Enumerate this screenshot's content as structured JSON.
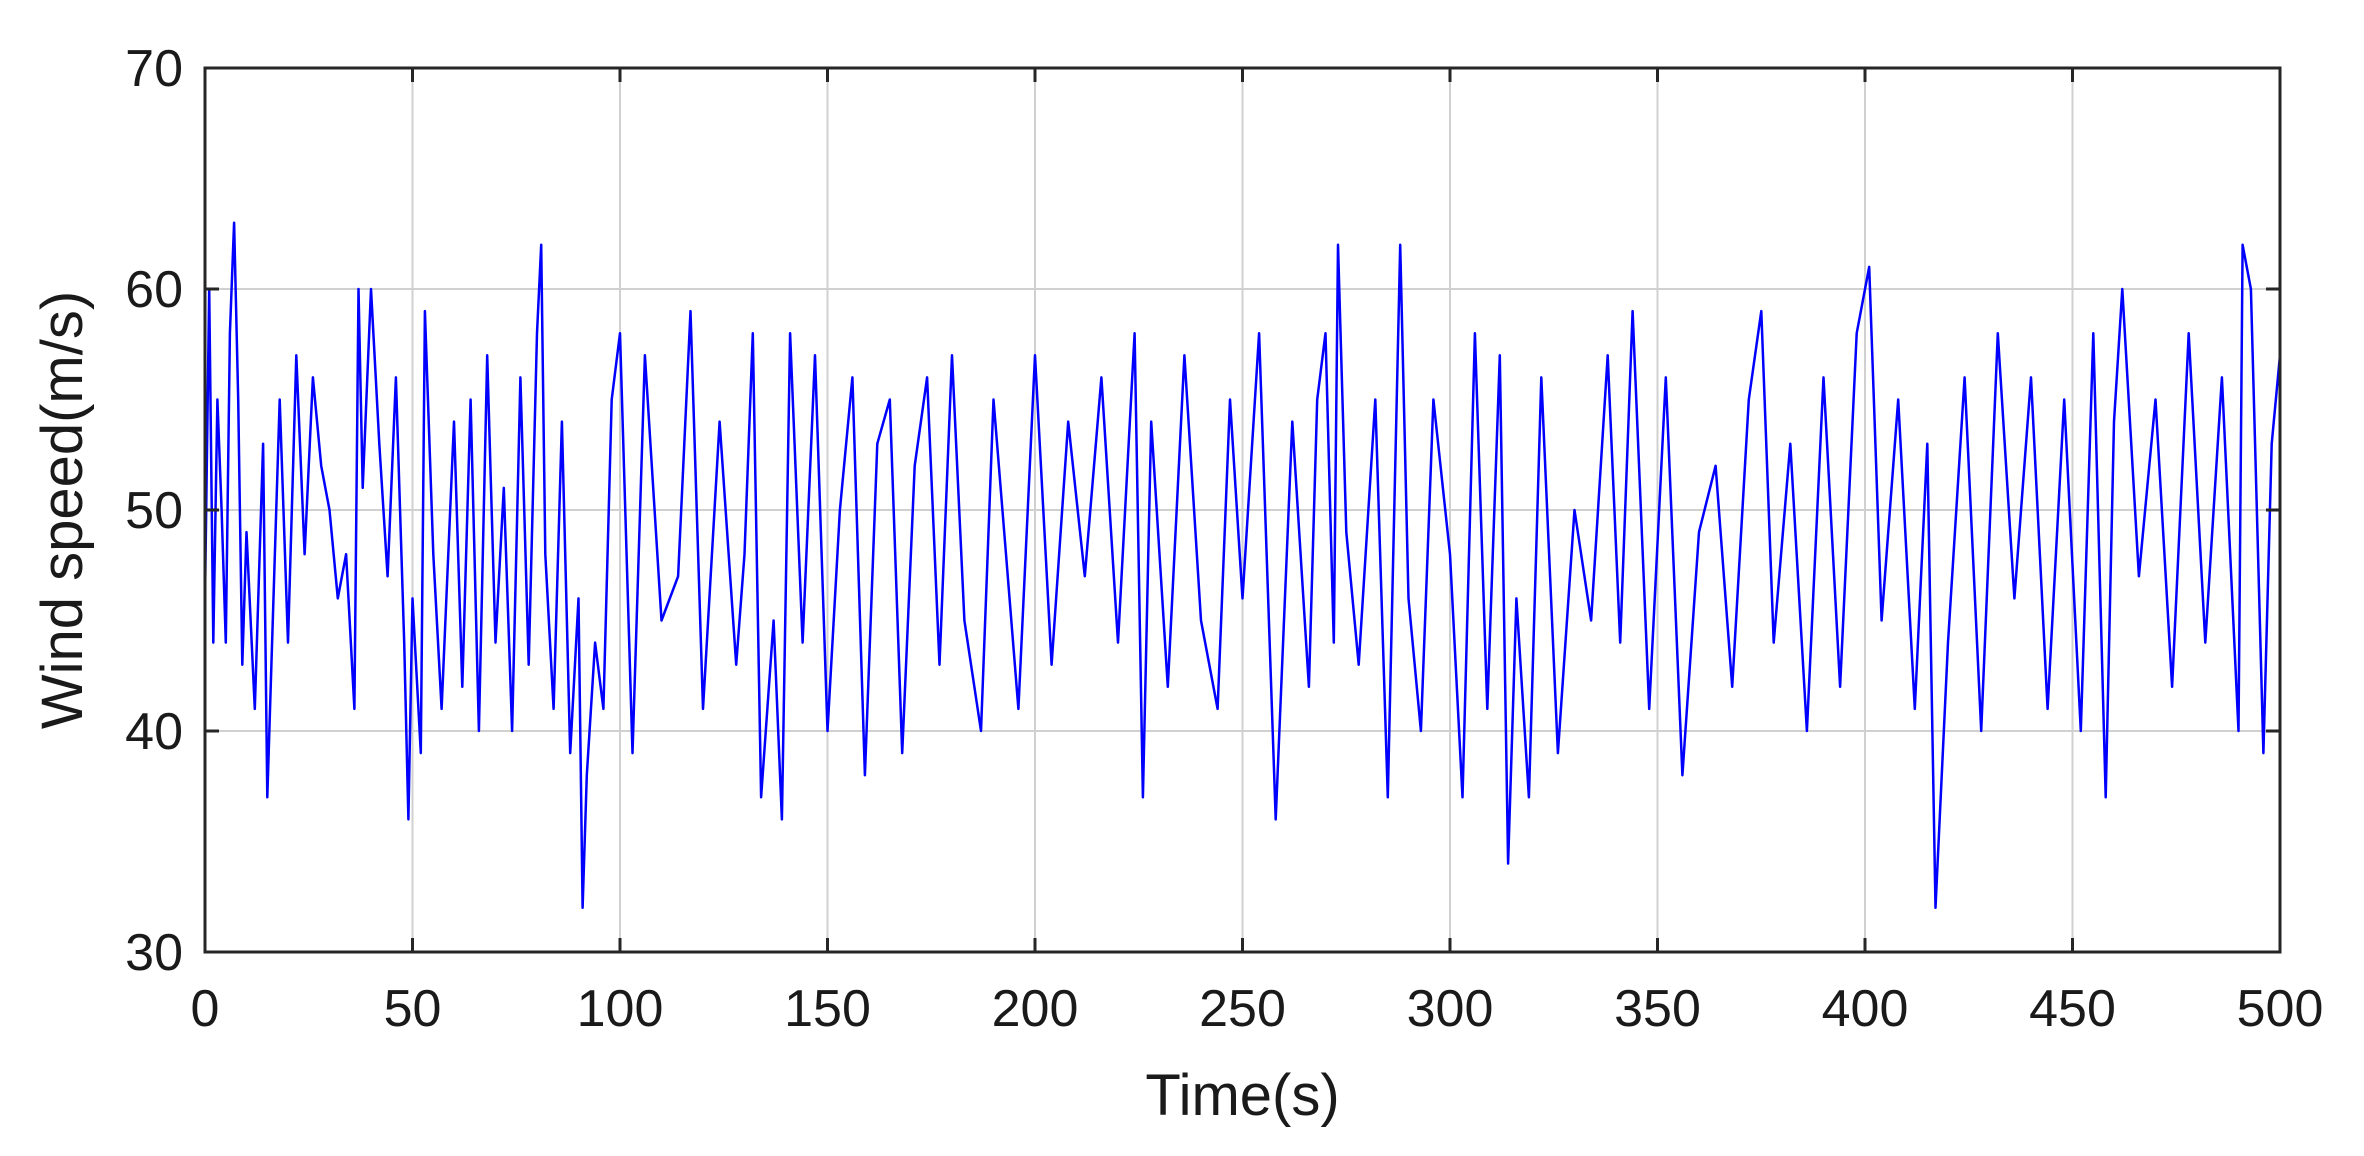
{
  "chart_data": {
    "type": "line",
    "title": "",
    "xlabel": "Time(s)",
    "ylabel": "Wind speed(m/s)",
    "xlim": [
      0,
      500
    ],
    "ylim": [
      30,
      70
    ],
    "xticks": [
      0,
      50,
      100,
      150,
      200,
      250,
      300,
      350,
      400,
      450,
      500
    ],
    "yticks": [
      30,
      40,
      50,
      60,
      70
    ],
    "grid": true,
    "series": [
      {
        "color": "#0000ff",
        "x": [
          0,
          1,
          2,
          3,
          4,
          5,
          6,
          7,
          8,
          9,
          10,
          12,
          14,
          15,
          16,
          18,
          20,
          22,
          24,
          26,
          28,
          30,
          32,
          34,
          36,
          37,
          38,
          40,
          42,
          44,
          46,
          48,
          49,
          50,
          52,
          53,
          55,
          57,
          60,
          62,
          64,
          66,
          68,
          70,
          72,
          74,
          76,
          78,
          80,
          81,
          82,
          84,
          86,
          88,
          90,
          91,
          92,
          94,
          96,
          98,
          100,
          103,
          106,
          110,
          114,
          117,
          120,
          124,
          128,
          130,
          132,
          134,
          137,
          139,
          141,
          144,
          147,
          150,
          153,
          156,
          159,
          162,
          165,
          168,
          171,
          174,
          177,
          180,
          183,
          187,
          190,
          193,
          196,
          200,
          204,
          208,
          212,
          216,
          220,
          224,
          226,
          228,
          232,
          236,
          240,
          244,
          247,
          250,
          254,
          258,
          262,
          266,
          268,
          270,
          272,
          273,
          275,
          278,
          282,
          285,
          288,
          290,
          293,
          296,
          300,
          303,
          306,
          309,
          312,
          314,
          316,
          319,
          322,
          326,
          330,
          334,
          338,
          341,
          344,
          348,
          352,
          356,
          360,
          364,
          368,
          372,
          375,
          378,
          382,
          386,
          390,
          394,
          398,
          401,
          404,
          408,
          412,
          415,
          417,
          420,
          424,
          428,
          432,
          436,
          440,
          444,
          448,
          452,
          455,
          458,
          460,
          462,
          466,
          470,
          474,
          478,
          482,
          486,
          490,
          491,
          493,
          496,
          498,
          500
        ],
        "y": [
          46,
          60,
          44,
          55,
          50,
          44,
          58,
          63,
          55,
          43,
          49,
          41,
          53,
          37,
          43,
          55,
          44,
          57,
          48,
          56,
          52,
          50,
          46,
          48,
          41,
          60,
          51,
          60,
          53,
          47,
          56,
          44,
          36,
          46,
          39,
          59,
          48,
          41,
          54,
          42,
          55,
          40,
          57,
          44,
          51,
          40,
          56,
          43,
          58,
          62,
          48,
          41,
          54,
          39,
          46,
          32,
          38,
          44,
          41,
          55,
          58,
          39,
          57,
          45,
          47,
          59,
          41,
          54,
          43,
          48,
          58,
          37,
          45,
          36,
          58,
          44,
          57,
          40,
          50,
          56,
          38,
          53,
          55,
          39,
          52,
          56,
          43,
          57,
          45,
          40,
          55,
          48,
          41,
          57,
          43,
          54,
          47,
          56,
          44,
          58,
          37,
          54,
          42,
          57,
          45,
          41,
          55,
          46,
          58,
          36,
          54,
          42,
          55,
          58,
          44,
          62,
          49,
          43,
          55,
          37,
          62,
          46,
          40,
          55,
          48,
          37,
          58,
          41,
          57,
          34,
          46,
          37,
          56,
          39,
          50,
          45,
          57,
          44,
          59,
          41,
          56,
          38,
          49,
          52,
          42,
          55,
          59,
          44,
          53,
          40,
          56,
          42,
          58,
          61,
          45,
          55,
          41,
          53,
          32,
          44,
          56,
          40,
          58,
          46,
          56,
          41,
          55,
          40,
          58,
          37,
          54,
          60,
          47,
          55,
          42,
          58,
          44,
          56,
          40,
          62,
          60,
          39,
          53,
          57
        ]
      }
    ]
  }
}
